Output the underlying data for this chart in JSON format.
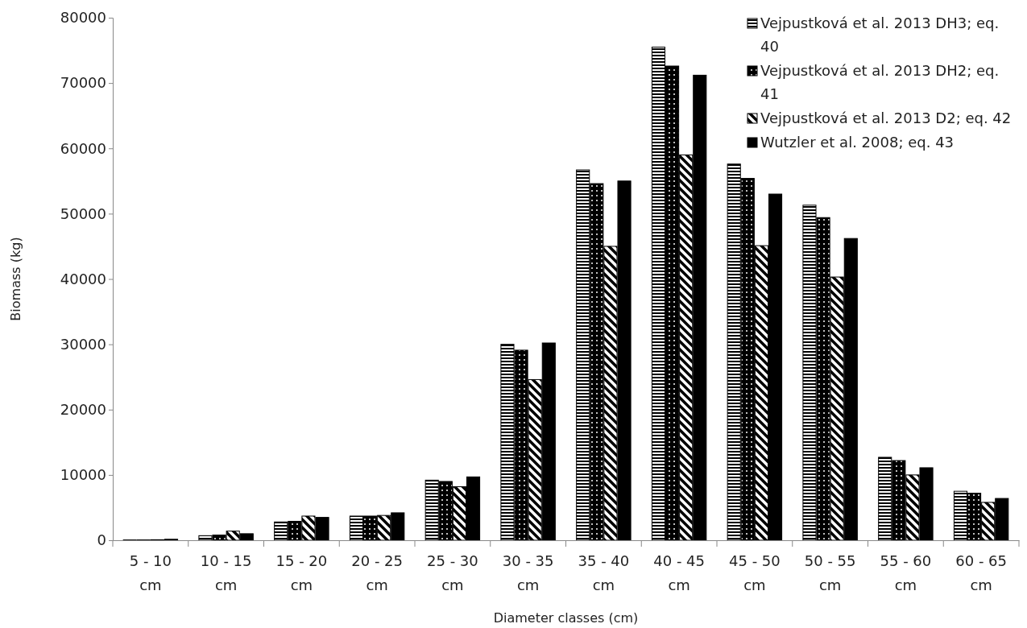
{
  "chart_data": {
    "type": "bar",
    "xlabel": "Diameter classes (cm)",
    "ylabel": "Biomass (kg)",
    "categories": [
      "5 - 10 cm",
      "10 - 15 cm",
      "15 - 20 cm",
      "20 - 25 cm",
      "25 - 30 cm",
      "30 - 35 cm",
      "35 - 40 cm",
      "40 - 45 cm",
      "45 - 50 cm",
      "50 - 55 cm",
      "55 - 60 cm",
      "60 - 65 cm"
    ],
    "series": [
      {
        "name": "Vejpustková et al. 2013 DH3; eq. 40",
        "color": "#000000",
        "values": [
          50,
          700,
          2800,
          3700,
          9200,
          30000,
          56700,
          75500,
          57600,
          51300,
          12700,
          7500
        ]
      },
      {
        "name": "Vejpustková et al. 2013 DH2; eq. 41",
        "color": "#000000",
        "values": [
          50,
          800,
          2900,
          3700,
          9000,
          29100,
          54600,
          72600,
          55400,
          49400,
          12200,
          7200
        ]
      },
      {
        "name": "Vejpustková et al. 2013 D2; eq. 42",
        "color": "#000000",
        "values": [
          80,
          1400,
          3700,
          3800,
          8200,
          24600,
          45000,
          59000,
          45100,
          40300,
          10000,
          5800
        ]
      },
      {
        "name": "Wutzler et al. 2008; eq. 43",
        "color": "#000000",
        "values": [
          150,
          1000,
          3500,
          4200,
          9700,
          30200,
          55000,
          71200,
          53000,
          46200,
          11100,
          6400
        ]
      }
    ],
    "ylim": [
      0,
      80000
    ],
    "yticks": [
      0,
      10000,
      20000,
      30000,
      40000,
      50000,
      60000,
      70000,
      80000
    ],
    "grid": false,
    "legend": "top right"
  }
}
